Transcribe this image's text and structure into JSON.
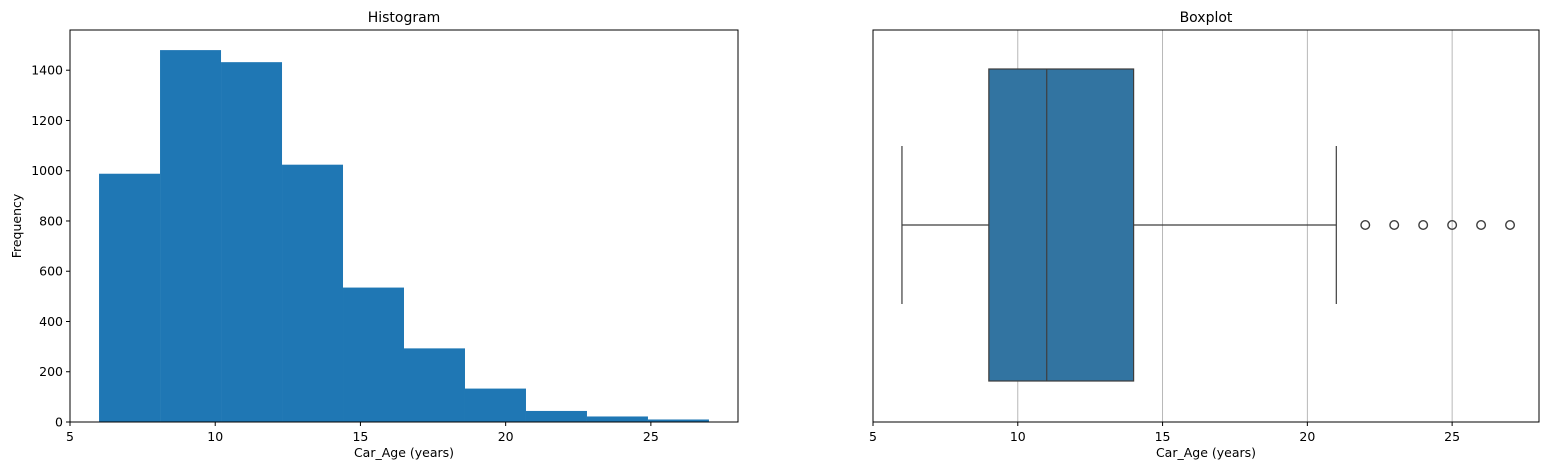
{
  "chart_data": [
    {
      "type": "bar",
      "title": "Histogram",
      "xlabel": "Car_Age (years)",
      "ylabel": "Frequency",
      "xlim": [
        5,
        28
      ],
      "ylim": [
        0,
        1560
      ],
      "bin_edges": [
        6.0,
        8.1,
        10.2,
        12.3,
        14.4,
        16.5,
        18.6,
        20.7,
        22.8,
        24.9,
        27.0
      ],
      "values": [
        988,
        1480,
        1432,
        1024,
        535,
        293,
        133,
        44,
        22,
        10
      ],
      "xticks": [
        5,
        10,
        15,
        20,
        25
      ],
      "yticks": [
        0,
        200,
        400,
        600,
        800,
        1000,
        1200,
        1400
      ],
      "bar_color": "#1f77b4"
    },
    {
      "type": "boxplot",
      "title": "Boxplot",
      "xlabel": "Car_Age (years)",
      "xlim": [
        5,
        28
      ],
      "whisker_low": 6,
      "q1": 9,
      "median": 11,
      "q3": 14,
      "whisker_high": 21,
      "outliers": [
        22,
        23,
        24,
        25,
        26,
        27
      ],
      "xticks": [
        5,
        10,
        15,
        20,
        25
      ],
      "grid": "x",
      "box_color": "#3274a1"
    }
  ]
}
